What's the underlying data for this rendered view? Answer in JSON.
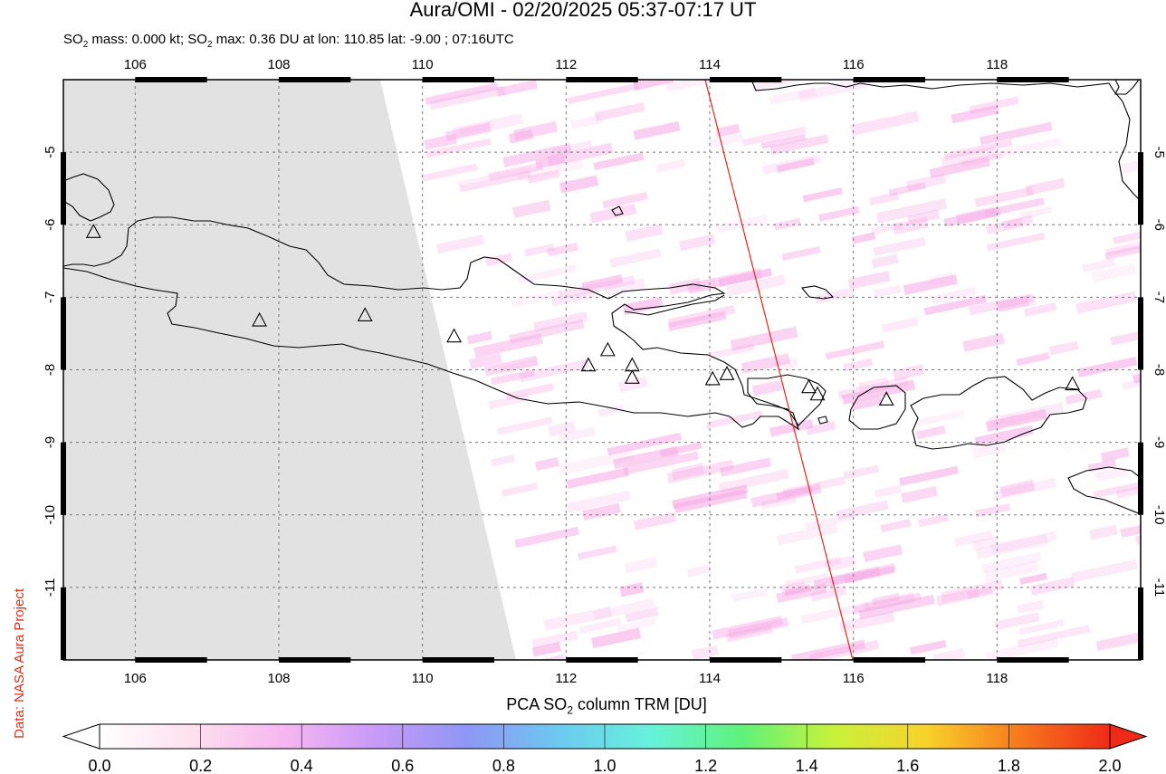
{
  "title": "Aura/OMI - 02/20/2025 05:37-07:17 UT",
  "subtitle": {
    "prefix": "SO",
    "sub": "2",
    "mid": " mass: 0.000 kt; SO",
    "sub2": "2",
    "suffix": " max: 0.36 DU at lon: 110.85 lat: -9.00 ; 07:16UTC"
  },
  "credit": "Data: NASA Aura Project",
  "colorbar": {
    "label": "PCA SO",
    "label_sub": "2",
    "label_suffix": " column TRM [DU]",
    "ticks": [
      "0.0",
      "0.2",
      "0.4",
      "0.6",
      "0.8",
      "1.0",
      "1.2",
      "1.4",
      "1.6",
      "1.8",
      "2.0"
    ],
    "stops": [
      "#ffffff",
      "#fde0ee",
      "#f7b6f0",
      "#c99af7",
      "#8f96f5",
      "#6cc9f0",
      "#66f2dc",
      "#5ff27a",
      "#c8f23a",
      "#f7d32a",
      "#f77a1d",
      "#ef2a17"
    ]
  },
  "map": {
    "lon_ticks": [
      "106",
      "108",
      "110",
      "112",
      "114",
      "116",
      "118"
    ],
    "lat_ticks": [
      "-5",
      "-6",
      "-7",
      "-8",
      "-9",
      "-10",
      "-11"
    ],
    "lon_range": [
      105,
      120
    ],
    "lat_range": [
      -12,
      -4
    ],
    "no_data_color": "#e2e2e2",
    "orbit_line_color": "#e2271c",
    "volcanoes": [
      {
        "lon": 105.42,
        "lat": -6.1
      },
      {
        "lon": 107.73,
        "lat": -7.32
      },
      {
        "lon": 109.2,
        "lat": -7.25
      },
      {
        "lon": 110.44,
        "lat": -7.54
      },
      {
        "lon": 112.31,
        "lat": -7.94
      },
      {
        "lon": 112.58,
        "lat": -7.73
      },
      {
        "lon": 112.92,
        "lat": -7.94
      },
      {
        "lon": 112.92,
        "lat": -8.11
      },
      {
        "lon": 114.04,
        "lat": -8.13
      },
      {
        "lon": 114.24,
        "lat": -8.06
      },
      {
        "lon": 115.38,
        "lat": -8.24
      },
      {
        "lon": 115.5,
        "lat": -8.34
      },
      {
        "lon": 116.46,
        "lat": -8.41
      },
      {
        "lon": 119.05,
        "lat": -8.2
      }
    ]
  }
}
